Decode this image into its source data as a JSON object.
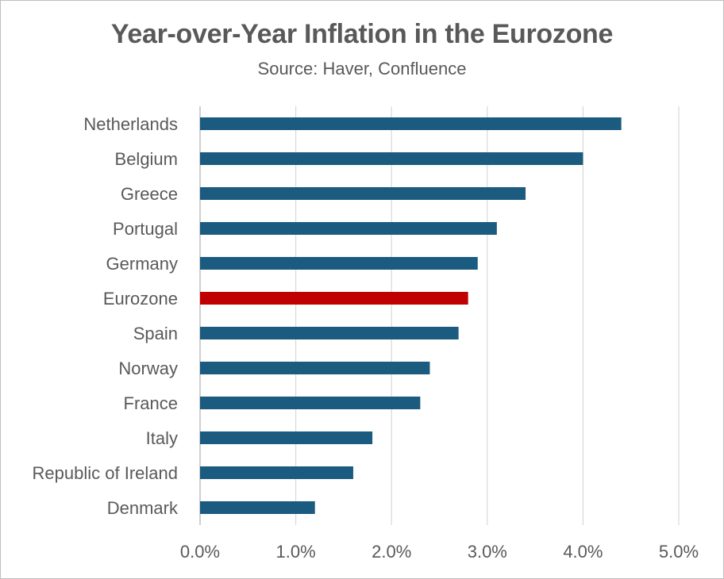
{
  "chart_data": {
    "type": "bar",
    "orientation": "horizontal",
    "title": "Year-over-Year Inflation in the Eurozone",
    "subtitle": "Source: Haver, Confluence",
    "categories": [
      "Netherlands",
      "Belgium",
      "Greece",
      "Portugal",
      "Germany",
      "Eurozone",
      "Spain",
      "Norway",
      "France",
      "Italy",
      "Republic of Ireland",
      "Denmark"
    ],
    "values": [
      4.4,
      4.0,
      3.4,
      3.1,
      2.9,
      2.8,
      2.7,
      2.4,
      2.3,
      1.8,
      1.6,
      1.2
    ],
    "xlim": [
      0,
      5
    ],
    "xticks": [
      0,
      1,
      2,
      3,
      4,
      5
    ],
    "xtick_labels": [
      "0.0%",
      "1.0%",
      "2.0%",
      "3.0%",
      "4.0%",
      "5.0%"
    ],
    "grid": true,
    "bar_color": "#1b5b7f",
    "highlight_category": "Eurozone",
    "highlight_color": "#c00000"
  }
}
